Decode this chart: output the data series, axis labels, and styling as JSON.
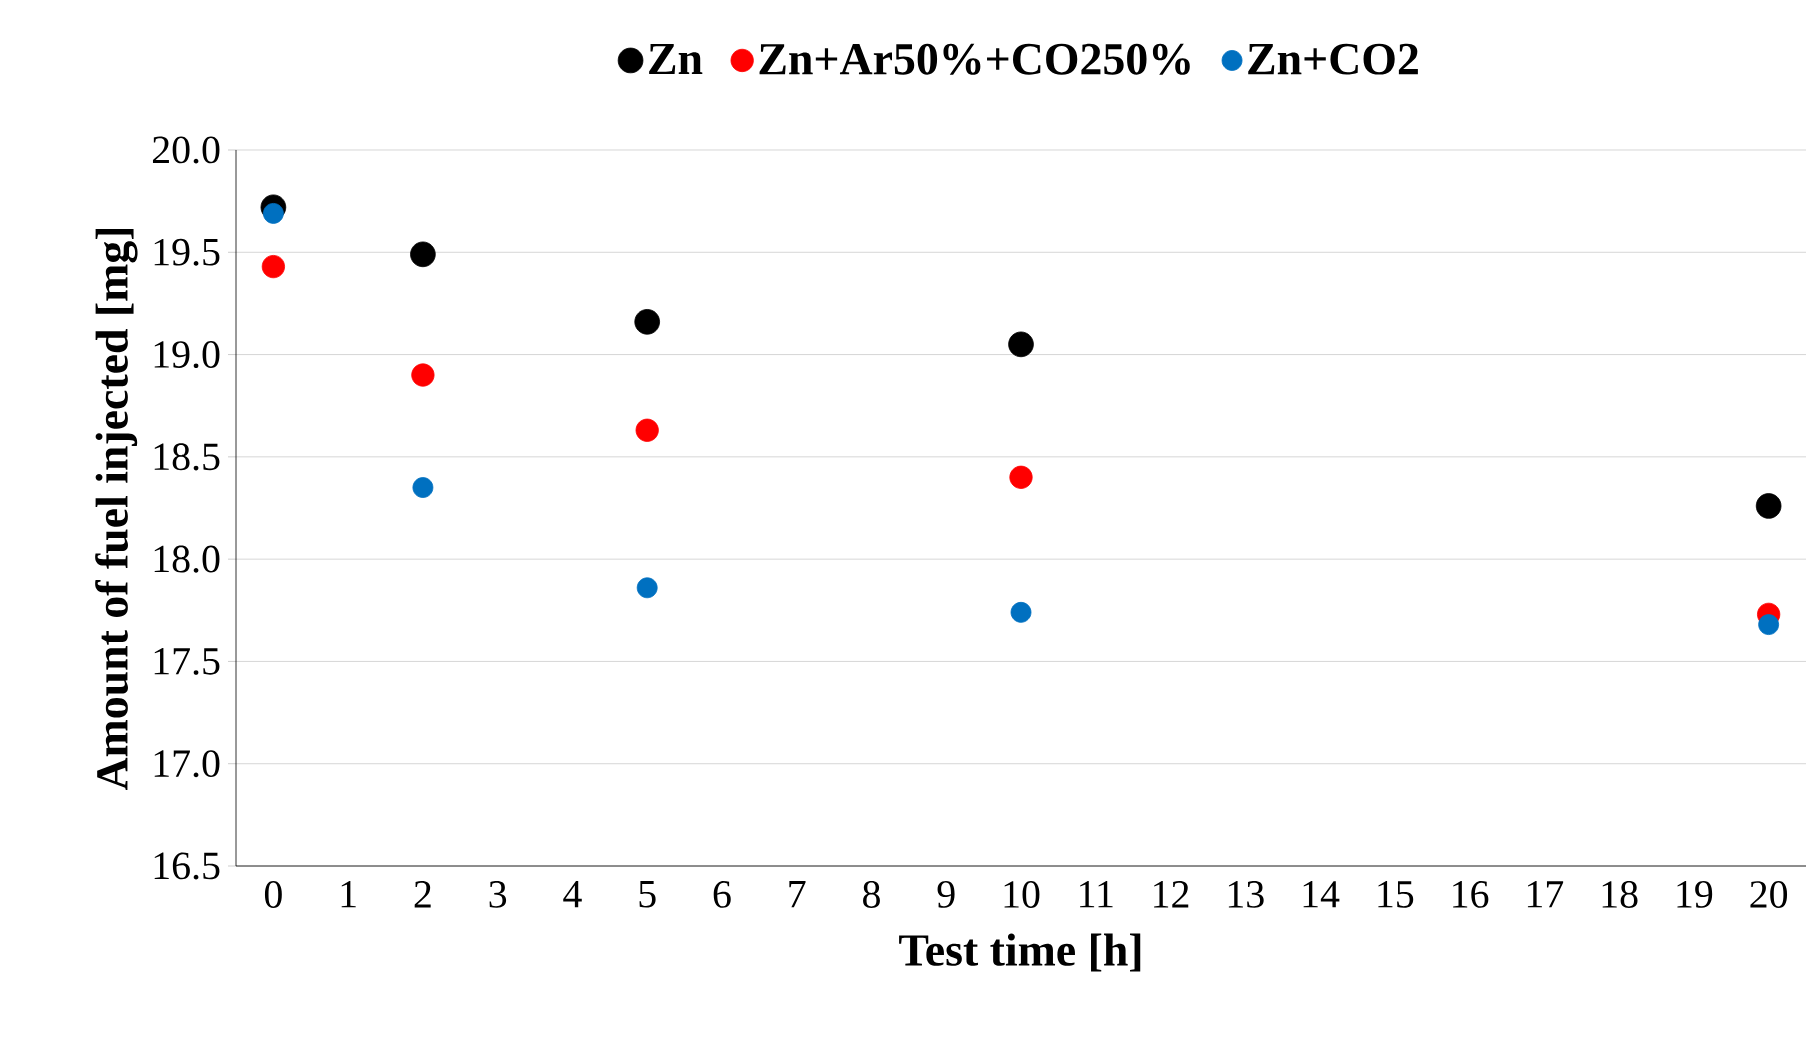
{
  "chart_data": {
    "type": "scatter",
    "xlabel": "Test time [h]",
    "ylabel": "Amount of fuel injected [mg]",
    "x": [
      0,
      2,
      5,
      10,
      20
    ],
    "series": [
      {
        "name": "Zn",
        "color": "#000000",
        "values": [
          19.72,
          19.49,
          19.16,
          19.05,
          18.26
        ]
      },
      {
        "name": "Zn+Ar50%+CO250%",
        "color": "#ff0000",
        "values": [
          19.43,
          18.9,
          18.63,
          18.4,
          17.73
        ]
      },
      {
        "name": "Zn+CO2",
        "color": "#0070c0",
        "values": [
          19.69,
          18.35,
          17.86,
          17.74,
          17.68
        ]
      }
    ],
    "xlim": [
      -0.5,
      20.5
    ],
    "xticks": [
      0,
      1,
      2,
      3,
      4,
      5,
      6,
      7,
      8,
      9,
      10,
      11,
      12,
      13,
      14,
      15,
      16,
      17,
      18,
      19,
      20
    ],
    "ylim": [
      16.5,
      20.0
    ],
    "yticks": [
      {
        "value": 16.5,
        "label": "16.5"
      },
      {
        "value": 17.0,
        "label": "17.0"
      },
      {
        "value": 17.5,
        "label": "17.5"
      },
      {
        "value": 18.0,
        "label": "18.0"
      },
      {
        "value": 18.5,
        "label": "18.5"
      },
      {
        "value": 19.0,
        "label": "19.0"
      },
      {
        "value": 19.5,
        "label": "19.5"
      },
      {
        "value": 20.0,
        "label": "20.0"
      }
    ],
    "grid": "y",
    "legend": "top",
    "marker": "circle"
  }
}
